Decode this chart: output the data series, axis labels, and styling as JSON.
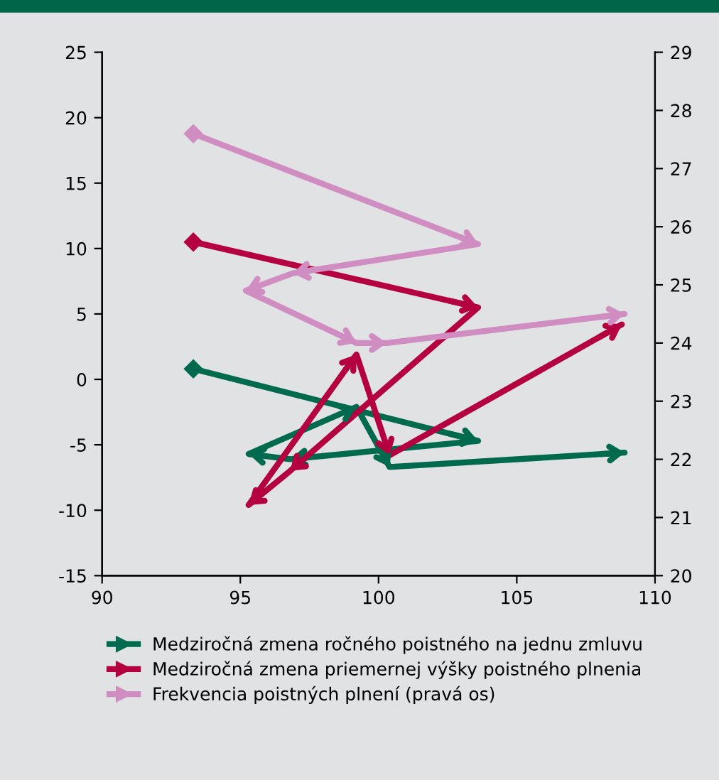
{
  "chart_data": {
    "type": "line",
    "xlim": [
      90,
      110
    ],
    "xticks": [
      90,
      95,
      100,
      105,
      110
    ],
    "ylim": [
      -15,
      25
    ],
    "yticks": [
      -15,
      -10,
      -5,
      0,
      5,
      10,
      15,
      20,
      25
    ],
    "y2lim": [
      20,
      29
    ],
    "y2ticks": [
      20,
      21,
      22,
      23,
      24,
      25,
      26,
      27,
      28,
      29
    ],
    "grid": false,
    "legend": "bottom",
    "series": [
      {
        "name": "Medziročná zmena ročného poistného na jednu zmluvu",
        "color": "#006a4e",
        "x": [
          93.3,
          103.6,
          96.8,
          95.3,
          99.2,
          100.4,
          108.9
        ],
        "values": [
          0.8,
          -4.7,
          -6.1,
          -5.7,
          -2.1,
          -6.7,
          -5.6
        ]
      },
      {
        "name": "Medziročná zmena priemernej výšky poistného plnenia",
        "color": "#b5003f",
        "x": [
          93.3,
          103.6,
          96.8,
          95.3,
          99.2,
          100.4,
          108.8
        ],
        "values": [
          10.5,
          5.5,
          -7.0,
          -9.6,
          1.9,
          -5.8,
          4.2
        ]
      },
      {
        "name": "Frekvencia poistných plnení (pravá os)",
        "color": "#d08dc1",
        "axis": "y2",
        "x": [
          93.3,
          103.6,
          96.9,
          95.2,
          99.2,
          100.3,
          108.9
        ],
        "values": [
          27.6,
          25.7,
          25.2,
          24.9,
          24.0,
          24.0,
          24.5
        ]
      }
    ]
  }
}
